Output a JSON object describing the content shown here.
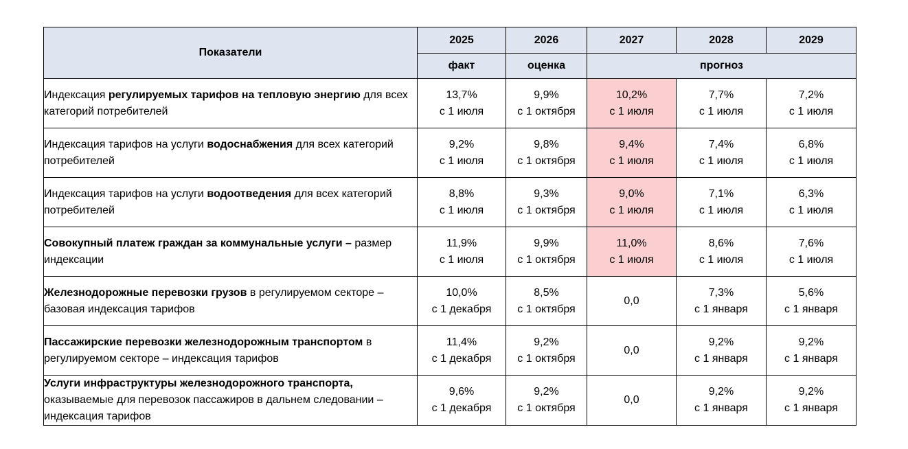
{
  "header": {
    "indicator_label": "Показатели",
    "years": [
      "2025",
      "2026",
      "2027",
      "2028",
      "2029"
    ],
    "subheaders": {
      "fact": "факт",
      "estimate": "оценка",
      "forecast": "прогноз"
    }
  },
  "highlight_color": "#fbcfcf",
  "header_color": "#dfe4f1",
  "rows": [
    {
      "indicator": {
        "pre": "Индексация ",
        "bold": "регулируемых тарифов на тепловую энергию",
        "post": " для всех категорий потребителей"
      },
      "values": [
        {
          "pct": "13,7%",
          "date": "с 1 июля"
        },
        {
          "pct": "9,9%",
          "date": "с 1 октября"
        },
        {
          "pct": "10,2%",
          "date": "с 1 июля"
        },
        {
          "pct": "7,7%",
          "date": "с 1 июля"
        },
        {
          "pct": "7,2%",
          "date": "с 1 июля"
        }
      ]
    },
    {
      "indicator": {
        "pre": "Индексация тарифов на услуги ",
        "bold": "водоснабжения",
        "post": " для всех категорий потребителей"
      },
      "values": [
        {
          "pct": "9,2%",
          "date": "с 1 июля"
        },
        {
          "pct": "9,8%",
          "date": "с 1 октября"
        },
        {
          "pct": "9,4%",
          "date": "с 1 июля"
        },
        {
          "pct": "7,4%",
          "date": "с 1 июля"
        },
        {
          "pct": "6,8%",
          "date": "с 1 июля"
        }
      ]
    },
    {
      "indicator": {
        "pre": "Индексация тарифов на услуги ",
        "bold": "водоотведения",
        "post": " для всех категорий потребителей"
      },
      "values": [
        {
          "pct": "8,8%",
          "date": "с 1 июля"
        },
        {
          "pct": "9,3%",
          "date": "с 1 октября"
        },
        {
          "pct": "9,0%",
          "date": "с 1 июля"
        },
        {
          "pct": "7,1%",
          "date": "с 1 июля"
        },
        {
          "pct": "6,3%",
          "date": "с 1 июля"
        }
      ]
    },
    {
      "indicator": {
        "pre": "",
        "bold": "Совокупный платеж граждан за коммунальные услуги –",
        "post": " размер индексации"
      },
      "values": [
        {
          "pct": "11,9%",
          "date": "с 1 июля"
        },
        {
          "pct": "9,9%",
          "date": "с 1 октября"
        },
        {
          "pct": "11,0%",
          "date": "с 1 июля"
        },
        {
          "pct": "8,6%",
          "date": "с 1 июля"
        },
        {
          "pct": "7,6%",
          "date": "с 1 июля"
        }
      ]
    },
    {
      "indicator": {
        "pre": "",
        "bold": "Железнодорожные перевозки грузов",
        "post": " в регулируемом секторе – базовая индексация тарифов"
      },
      "values": [
        {
          "pct": "10,0%",
          "date": "с 1 декабря"
        },
        {
          "pct": "8,5%",
          "date": "с 1 октября"
        },
        {
          "pct": "0,0",
          "date": ""
        },
        {
          "pct": "7,3%",
          "date": "с 1 января"
        },
        {
          "pct": "5,6%",
          "date": "с 1 января"
        }
      ]
    },
    {
      "indicator": {
        "pre": "",
        "bold": "Пассажирские перевозки железнодорожным транспортом",
        "post": " в регулируемом секторе – индексация тарифов"
      },
      "values": [
        {
          "pct": "11,4%",
          "date": "с 1 декабря"
        },
        {
          "pct": "9,2%",
          "date": "с 1 октября"
        },
        {
          "pct": "0,0",
          "date": ""
        },
        {
          "pct": "9,2%",
          "date": "с 1 января"
        },
        {
          "pct": "9,2%",
          "date": "с 1 января"
        }
      ]
    },
    {
      "indicator": {
        "pre": "",
        "bold": "Услуги инфраструктуры железнодорожного транспорта,",
        "post": " оказываемые для перевозок пассажиров в дальнем следовании – индексация тарифов"
      },
      "values": [
        {
          "pct": "9,6%",
          "date": "с 1 декабря"
        },
        {
          "pct": "9,2%",
          "date": "с 1 октября"
        },
        {
          "pct": "0,0",
          "date": ""
        },
        {
          "pct": "9,2%",
          "date": "с 1 января"
        },
        {
          "pct": "9,2%",
          "date": "с 1 января"
        }
      ]
    }
  ]
}
